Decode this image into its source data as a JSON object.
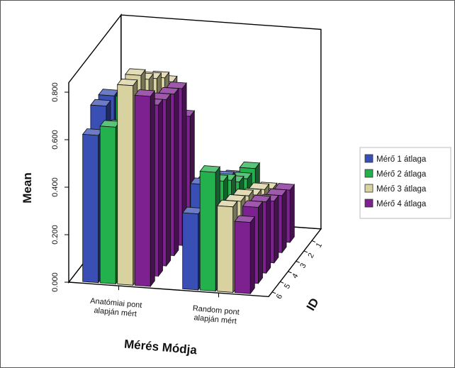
{
  "chart_data": {
    "type": "bar",
    "subtype": "3d-clustered",
    "title": "",
    "xlabel": "Mérés Módja",
    "ylabel": "Mean",
    "zlabel": "ID",
    "ylim": [
      0,
      0.8
    ],
    "yticks": [
      "0.000",
      "0.200",
      "0.400",
      "0.600",
      "0.800"
    ],
    "categories": [
      "Anatómiai pont alapján mért",
      "Random pont alapján mért"
    ],
    "depth_categories": [
      "6",
      "5",
      "4",
      "3",
      "2",
      "1"
    ],
    "legend_position": "right",
    "series": [
      {
        "name": "Mérő 1 átlaga",
        "color": "#3a4fb5",
        "values": [
          [
            0.45,
            0.6,
            0.58,
            0.7,
            0.7,
            0.62
          ],
          [
            0.26,
            0.3,
            0.3,
            0.38,
            0.4,
            0.32
          ]
        ]
      },
      {
        "name": "Mérő 2 átlaga",
        "color": "#22b14c",
        "values": [
          [
            0.58,
            0.6,
            0.64,
            0.7,
            0.62,
            0.66
          ],
          [
            0.3,
            0.3,
            0.33,
            0.38,
            0.42,
            0.5
          ]
        ]
      },
      {
        "name": "Mérő 3 átlaga",
        "color": "#d8d2a0",
        "values": [
          [
            0.64,
            0.7,
            0.74,
            0.78,
            0.84,
            0.84
          ],
          [
            0.22,
            0.26,
            0.28,
            0.32,
            0.34,
            0.36
          ]
        ]
      },
      {
        "name": "Mérő 4 átlaga",
        "color": "#7d2090",
        "values": [
          [
            0.5,
            0.66,
            0.68,
            0.7,
            0.72,
            0.8
          ],
          [
            0.22,
            0.24,
            0.26,
            0.3,
            0.32,
            0.3
          ]
        ]
      }
    ]
  }
}
